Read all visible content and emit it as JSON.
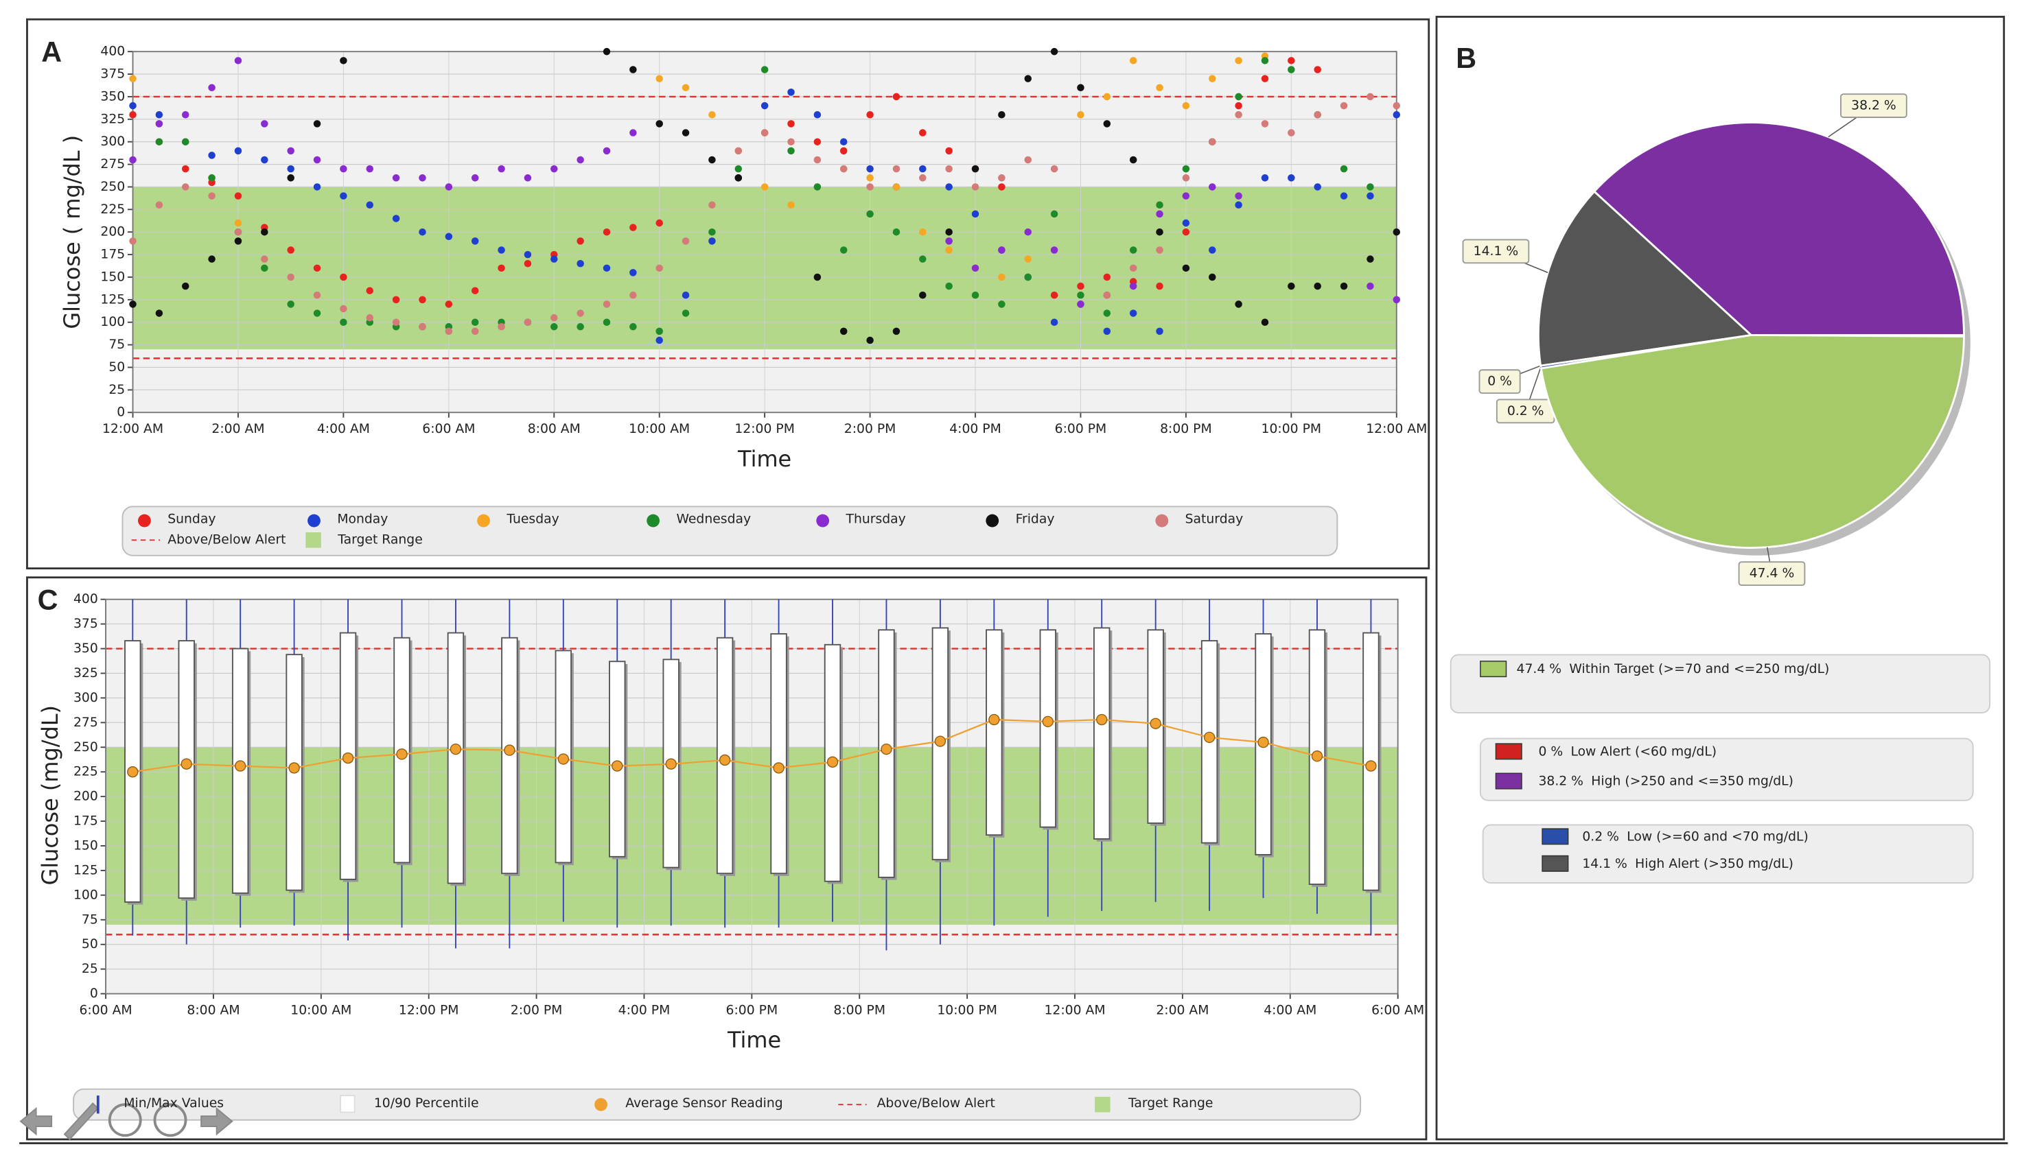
{
  "chart_data": [
    {
      "type": "scatter",
      "panel": "A",
      "x_label": "Time",
      "y_label": "Glucose ( mg/dL )",
      "xlim": [
        0,
        24
      ],
      "ylim": [
        0,
        400
      ],
      "xticks": [
        {
          "value": 0,
          "label": "12:00 AM"
        },
        {
          "value": 2,
          "label": "2:00 AM"
        },
        {
          "value": 4,
          "label": "4:00 AM"
        },
        {
          "value": 6,
          "label": "6:00 AM"
        },
        {
          "value": 8,
          "label": "8:00 AM"
        },
        {
          "value": 10,
          "label": "10:00 AM"
        },
        {
          "value": 12,
          "label": "12:00 PM"
        },
        {
          "value": 14,
          "label": "2:00 PM"
        },
        {
          "value": 16,
          "label": "4:00 PM"
        },
        {
          "value": 18,
          "label": "6:00 PM"
        },
        {
          "value": 20,
          "label": "8:00 PM"
        },
        {
          "value": 22,
          "label": "10:00 PM"
        },
        {
          "value": 24,
          "label": "12:00 AM"
        }
      ],
      "yticks": [
        0,
        25,
        50,
        75,
        100,
        125,
        150,
        175,
        200,
        225,
        250,
        275,
        300,
        325,
        350,
        375,
        400
      ],
      "grid": true,
      "target_range": [
        70,
        250
      ],
      "target_color": "#b3d88a",
      "alert_lines": [
        60,
        350
      ],
      "alert_color": "#e03030",
      "alert_label": "Above/Below Alert",
      "target_label": "Target Range",
      "x": [
        0,
        0.5,
        1,
        1.5,
        2,
        2.5,
        3,
        3.5,
        4,
        4.5,
        5,
        5.5,
        6,
        6.5,
        7,
        7.5,
        8,
        8.5,
        9,
        9.5,
        10,
        10.5,
        11,
        11.5,
        12,
        12.5,
        13,
        13.5,
        14,
        14.5,
        15,
        15.5,
        16,
        16.5,
        17,
        17.5,
        18,
        18.5,
        19,
        19.5,
        20,
        20.5,
        21,
        21.5,
        22,
        22.5,
        23,
        23.5,
        24
      ],
      "series": [
        {
          "name": "Sunday",
          "color": "#e8231f",
          "values": [
            330,
            300,
            270,
            255,
            240,
            205,
            180,
            160,
            150,
            135,
            125,
            125,
            120,
            135,
            160,
            165,
            175,
            190,
            200,
            205,
            210,
            null,
            null,
            260,
            310,
            320,
            300,
            290,
            330,
            350,
            310,
            290,
            270,
            250,
            null,
            130,
            140,
            150,
            145,
            140,
            200,
            300,
            340,
            370,
            390,
            380,
            null,
            null,
            null
          ]
        },
        {
          "name": "Monday",
          "color": "#1f3fd0",
          "values": [
            340,
            330,
            300,
            285,
            290,
            280,
            270,
            250,
            240,
            230,
            215,
            200,
            195,
            190,
            180,
            175,
            170,
            165,
            160,
            155,
            80,
            130,
            190,
            260,
            340,
            355,
            330,
            300,
            270,
            250,
            270,
            250,
            220,
            180,
            150,
            100,
            120,
            90,
            110,
            90,
            210,
            180,
            230,
            260,
            260,
            250,
            240,
            240,
            330
          ]
        },
        {
          "name": "Tuesday",
          "color": "#f5a623",
          "values": [
            370,
            320,
            300,
            260,
            210,
            null,
            null,
            null,
            null,
            null,
            null,
            null,
            null,
            null,
            null,
            null,
            null,
            null,
            null,
            null,
            370,
            360,
            330,
            290,
            250,
            230,
            250,
            270,
            260,
            250,
            200,
            180,
            160,
            150,
            170,
            180,
            330,
            350,
            390,
            360,
            340,
            370,
            390,
            395,
            null,
            null,
            null,
            null,
            null
          ]
        },
        {
          "name": "Wednesday",
          "color": "#1f8a2a",
          "values": [
            null,
            300,
            300,
            260,
            200,
            160,
            120,
            110,
            100,
            100,
            95,
            95,
            95,
            100,
            100,
            100,
            95,
            95,
            100,
            95,
            90,
            110,
            200,
            270,
            380,
            290,
            250,
            180,
            220,
            200,
            170,
            140,
            130,
            120,
            150,
            220,
            130,
            110,
            180,
            230,
            270,
            300,
            350,
            390,
            380,
            330,
            270,
            250,
            null
          ]
        },
        {
          "name": "Thursday",
          "color": "#8a2bd0",
          "values": [
            280,
            320,
            330,
            360,
            390,
            320,
            290,
            280,
            270,
            270,
            260,
            260,
            250,
            260,
            270,
            260,
            270,
            280,
            290,
            310,
            null,
            null,
            null,
            null,
            null,
            null,
            null,
            null,
            null,
            null,
            null,
            190,
            160,
            180,
            200,
            180,
            120,
            130,
            140,
            220,
            240,
            250,
            240,
            null,
            null,
            null,
            null,
            140,
            125
          ]
        },
        {
          "name": "Friday",
          "color": "#111111",
          "values": [
            120,
            110,
            140,
            170,
            190,
            200,
            260,
            320,
            390,
            null,
            null,
            null,
            null,
            null,
            null,
            null,
            null,
            null,
            400,
            380,
            320,
            310,
            280,
            260,
            null,
            null,
            150,
            90,
            80,
            90,
            130,
            200,
            270,
            330,
            370,
            400,
            360,
            320,
            280,
            200,
            160,
            150,
            120,
            100,
            140,
            140,
            140,
            170,
            200
          ]
        },
        {
          "name": "Saturday",
          "color": "#d47a78",
          "values": [
            190,
            230,
            250,
            240,
            200,
            170,
            150,
            130,
            115,
            105,
            100,
            95,
            90,
            90,
            95,
            100,
            105,
            110,
            120,
            130,
            160,
            190,
            230,
            290,
            310,
            300,
            280,
            270,
            250,
            270,
            260,
            270,
            250,
            260,
            280,
            270,
            null,
            130,
            160,
            180,
            260,
            300,
            330,
            320,
            310,
            330,
            340,
            350,
            340
          ]
        }
      ]
    },
    {
      "type": "pie",
      "panel": "B",
      "categories": [
        "High (>250 and <=350 mg/dL)",
        "High Alert (>350 mg/dL)",
        "Low Alert (<60 mg/dL)",
        "Low (>=60 and <70 mg/dL)",
        "Within Target (>=70 and <=250 mg/dL)"
      ],
      "values": [
        38.2,
        14.1,
        0,
        0.2,
        47.4
      ],
      "value_labels": [
        "38.2 %",
        "14.1 %",
        "0 %",
        "0.2 %",
        "47.4 %"
      ],
      "colors": [
        "#7b2fa0",
        "#555555",
        "#d02020",
        "#2a4fa8",
        "#a6c96a"
      ]
    },
    {
      "type": "box",
      "panel": "C",
      "x_label": "Time",
      "y_label": "Glucose (mg/dL)",
      "xlim": [
        6,
        30
      ],
      "ylim": [
        0,
        400
      ],
      "xticks": [
        {
          "value": 6,
          "label": "6:00 AM"
        },
        {
          "value": 8,
          "label": "8:00 AM"
        },
        {
          "value": 10,
          "label": "10:00 AM"
        },
        {
          "value": 12,
          "label": "12:00 PM"
        },
        {
          "value": 14,
          "label": "2:00 PM"
        },
        {
          "value": 16,
          "label": "4:00 PM"
        },
        {
          "value": 18,
          "label": "6:00 PM"
        },
        {
          "value": 20,
          "label": "8:00 PM"
        },
        {
          "value": 22,
          "label": "10:00 PM"
        },
        {
          "value": 24,
          "label": "12:00 AM"
        },
        {
          "value": 26,
          "label": "2:00 AM"
        },
        {
          "value": 28,
          "label": "4:00 AM"
        },
        {
          "value": 30,
          "label": "6:00 AM"
        }
      ],
      "yticks": [
        0,
        25,
        50,
        75,
        100,
        125,
        150,
        175,
        200,
        225,
        250,
        275,
        300,
        325,
        350,
        375,
        400
      ],
      "grid": true,
      "target_range": [
        70,
        250
      ],
      "target_color": "#b3d88a",
      "alert_lines": [
        60,
        350
      ],
      "alert_color": "#e03030",
      "legend": [
        "Min/Max Values",
        "10/90 Percentile",
        "Average Sensor Reading",
        "Above/Below Alert",
        "Target Range"
      ],
      "whisker_color": "#3344bb",
      "mean_color": "#f0a030",
      "x": [
        6.5,
        7.5,
        8.5,
        9.5,
        10.5,
        11.5,
        12.5,
        13.5,
        14.5,
        15.5,
        16.5,
        17.5,
        18.5,
        19.5,
        20.5,
        21.5,
        22.5,
        23.5,
        24.5,
        25.5,
        26.5,
        27.5,
        28.5,
        29.5
      ],
      "min": [
        59,
        50,
        67,
        69,
        54,
        67,
        46,
        46,
        73,
        67,
        69,
        67,
        67,
        73,
        44,
        50,
        69,
        78,
        84,
        93,
        84,
        97,
        81,
        59
      ],
      "p10": [
        93,
        97,
        102,
        105,
        116,
        133,
        112,
        122,
        133,
        139,
        128,
        122,
        122,
        114,
        118,
        136,
        161,
        169,
        157,
        173,
        153,
        141,
        111,
        105
      ],
      "mean": [
        225,
        233,
        231,
        229,
        239,
        243,
        248,
        247,
        238,
        231,
        233,
        237,
        229,
        235,
        248,
        256,
        278,
        276,
        278,
        274,
        260,
        255,
        241,
        231
      ],
      "p90": [
        358,
        358,
        350,
        344,
        366,
        361,
        366,
        361,
        348,
        337,
        339,
        361,
        365,
        354,
        369,
        371,
        369,
        369,
        371,
        369,
        358,
        365,
        369,
        366
      ],
      "max": [
        400,
        400,
        400,
        400,
        400,
        400,
        400,
        400,
        400,
        400,
        400,
        400,
        400,
        400,
        400,
        400,
        400,
        400,
        400,
        400,
        400,
        400,
        400,
        400
      ]
    }
  ]
}
